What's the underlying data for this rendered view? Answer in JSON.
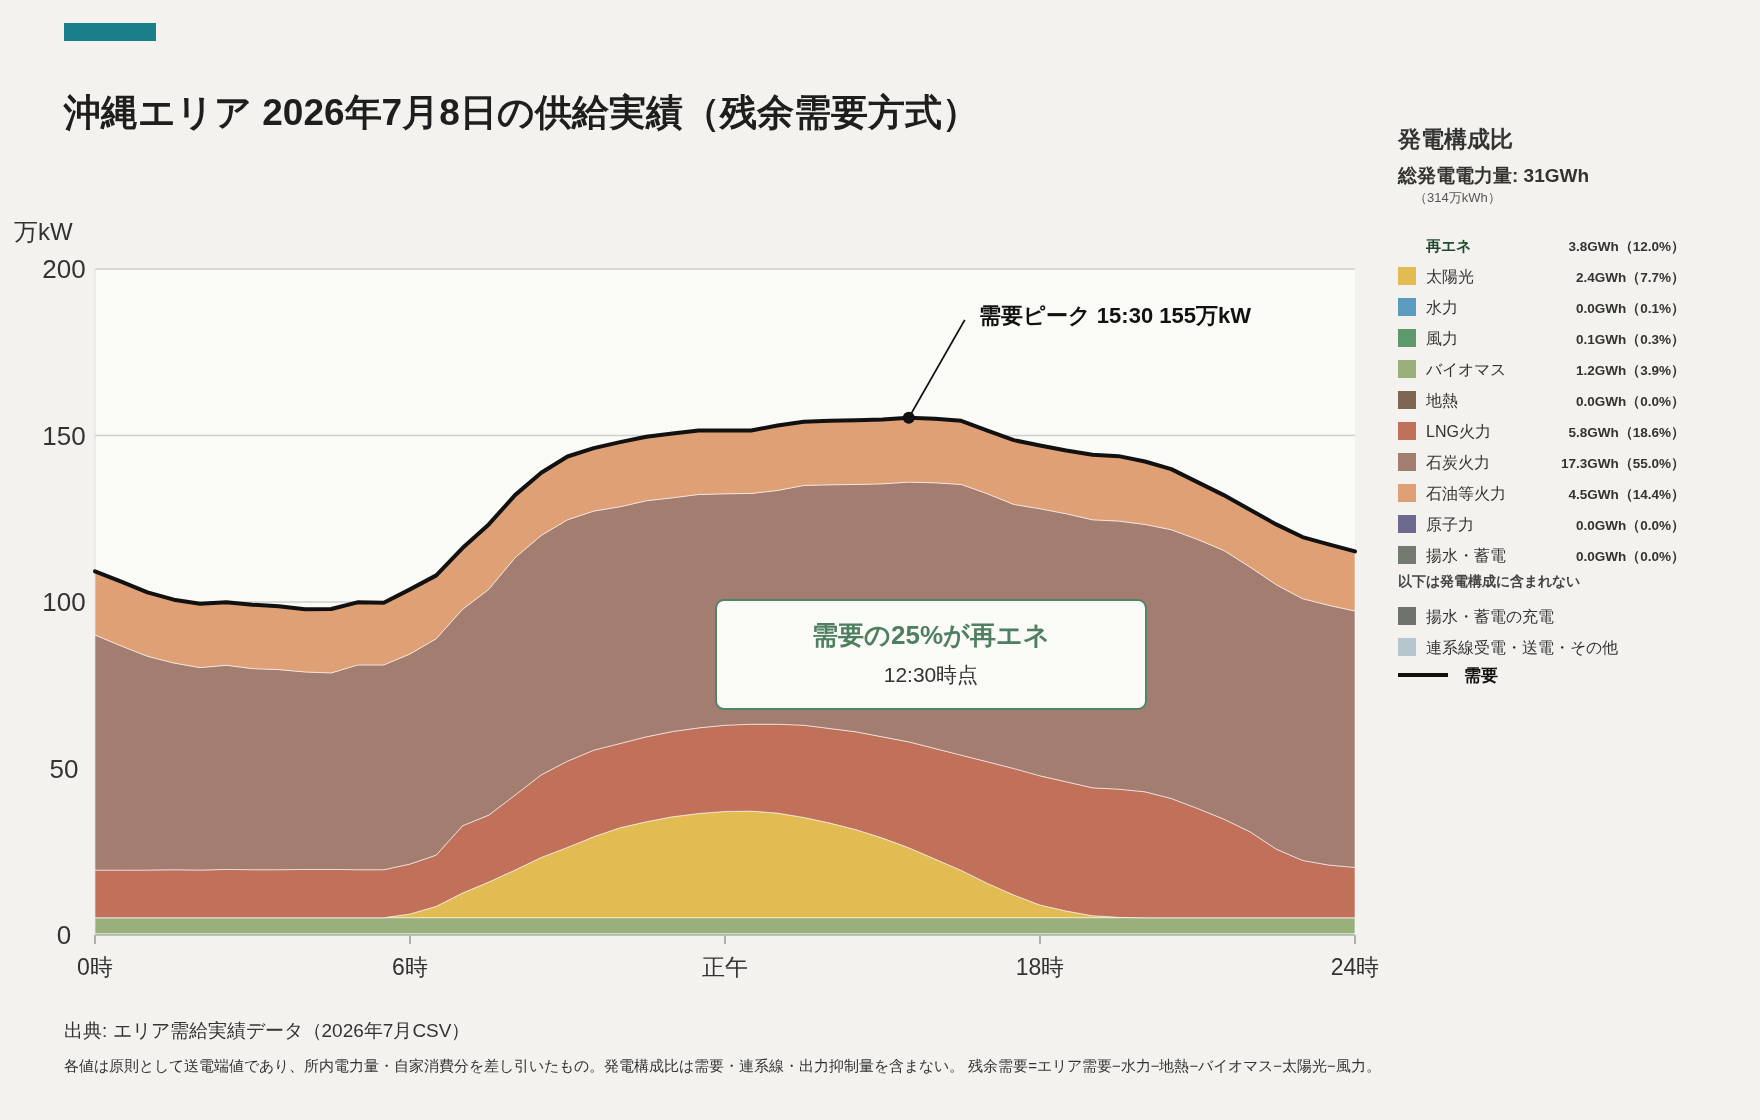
{
  "chart_data": [
    {
      "type": "area",
      "stacked": true,
      "title": "沖縄エリア 2026年7月8日の供給実績（残余需要方式）",
      "ylabel": "万kW",
      "x": [
        0,
        0.5,
        1,
        1.5,
        2,
        2.5,
        3,
        3.5,
        4,
        4.5,
        5,
        5.5,
        6,
        6.5,
        7,
        7.5,
        8,
        8.5,
        9,
        9.5,
        10,
        10.5,
        11,
        11.5,
        12,
        12.5,
        13,
        13.5,
        14,
        14.5,
        15,
        15.5,
        16,
        16.5,
        17,
        17.5,
        18,
        18.5,
        19,
        19.5,
        20,
        20.5,
        21,
        21.5,
        22,
        22.5,
        23,
        23.5,
        24
      ],
      "xlim": [
        0,
        24
      ],
      "ylim": [
        0,
        200
      ],
      "xticks": [
        {
          "value": 0,
          "label": "0時"
        },
        {
          "value": 6,
          "label": "6時"
        },
        {
          "value": 12,
          "label": "正午"
        },
        {
          "value": 18,
          "label": "18時"
        },
        {
          "value": 24,
          "label": "24時"
        }
      ],
      "yticks": [
        0,
        50,
        100,
        150,
        200
      ],
      "grid": "y",
      "series": [
        {
          "color": "#5c9a6e",
          "values": [
            0.4,
            0.4,
            0.4,
            0.4,
            0.4,
            0.4,
            0.4,
            0.4,
            0.4,
            0.4,
            0.4,
            0.4,
            0.4,
            0.4,
            0.4,
            0.4,
            0.4,
            0.4,
            0.4,
            0.4,
            0.4,
            0.4,
            0.4,
            0.4,
            0.4,
            0.4,
            0.4,
            0.4,
            0.4,
            0.4,
            0.4,
            0.4,
            0.4,
            0.4,
            0.4,
            0.4,
            0.4,
            0.4,
            0.4,
            0.4,
            0.4,
            0.4,
            0.4,
            0.4,
            0.4,
            0.4,
            0.4,
            0.4,
            0.4
          ]
        },
        {
          "color": "#9ab07c",
          "values": [
            4.8,
            4.8,
            4.8,
            4.8,
            4.8,
            4.8,
            4.8,
            4.8,
            4.8,
            4.8,
            4.8,
            4.8,
            4.8,
            4.8,
            4.8,
            4.8,
            4.8,
            4.8,
            4.8,
            4.8,
            4.8,
            4.8,
            4.8,
            4.8,
            4.8,
            4.8,
            4.8,
            4.8,
            4.8,
            4.8,
            4.8,
            4.8,
            4.8,
            4.8,
            4.8,
            4.8,
            4.8,
            4.8,
            4.8,
            4.8,
            4.8,
            4.8,
            4.8,
            4.8,
            4.8,
            4.8,
            4.8,
            4.8,
            4.8
          ]
        },
        {
          "color": "#e2bc53",
          "values": [
            0,
            0,
            0,
            0,
            0,
            0,
            0,
            0,
            0,
            0,
            0,
            0,
            1.1,
            3.4,
            7.4,
            10.7,
            14.3,
            18.1,
            21.1,
            24.3,
            27,
            28.8,
            30.3,
            31.3,
            31.9,
            32,
            31.4,
            30.1,
            28.4,
            26.4,
            23.9,
            21,
            17.6,
            14.2,
            10.3,
            6.8,
            3.8,
            2,
            0.6,
            0.1,
            0,
            0,
            0,
            0,
            0,
            0,
            0,
            0,
            0
          ]
        },
        {
          "color": "#c1705a",
          "values": [
            14.3,
            14.3,
            14.3,
            14.4,
            14.3,
            14.5,
            14.4,
            14.4,
            14.5,
            14.5,
            14.4,
            14.4,
            15,
            15.4,
            20.2,
            20.1,
            22.5,
            24.8,
            25.9,
            26,
            25.3,
            25.5,
            25.6,
            25.7,
            25.9,
            26.1,
            26.7,
            27.7,
            28.4,
            29.4,
            30.4,
            31.8,
            33.2,
            34.6,
            36.5,
            38,
            38.8,
            38.8,
            38.4,
            38.5,
            37.8,
            35.8,
            32.8,
            29.6,
            25.8,
            20.6,
            17.2,
            15.8,
            15.1
          ]
        },
        {
          "color": "#a27d70",
          "values": [
            70.6,
            67.3,
            64.2,
            62.1,
            60.8,
            61.3,
            60.4,
            60.1,
            59.3,
            59,
            61.5,
            61.5,
            63.1,
            65,
            65,
            67.8,
            71.3,
            71.9,
            72.5,
            71.8,
            71.1,
            70.9,
            70.2,
            70.1,
            69.5,
            69.3,
            70.2,
            72,
            73.2,
            74.3,
            76,
            78,
            79.8,
            81.3,
            80.5,
            79.3,
            80.2,
            80.5,
            80.5,
            80.5,
            80.3,
            80.7,
            80.8,
            80.7,
            79.5,
            79.4,
            78.6,
            78,
            77
          ]
        },
        {
          "color": "#dfa076",
          "values": [
            19.1,
            19.3,
            19.2,
            19,
            19.2,
            18.9,
            19.2,
            19,
            18.8,
            19.2,
            18.8,
            18.7,
            19.4,
            19,
            18.4,
            19.5,
            18.8,
            18.8,
            19,
            18.9,
            19.4,
            19.2,
            19.3,
            19.2,
            19,
            18.9,
            19.5,
            19.1,
            19.2,
            19.3,
            19.3,
            19.3,
            19.2,
            19.1,
            19,
            19.3,
            19,
            19,
            19.5,
            19.5,
            18.9,
            18.2,
            17.2,
            16.6,
            17.2,
            18.1,
            18.5,
            18.3,
            17.9
          ]
        }
      ],
      "annotations": [
        "需要の25%が再エネ",
        "12:30時点",
        "出典: エリア需給実績データ（2026年7月CSV）",
        "各値は原則として送電端値であり、所内電力量・自家消費分を差し引いたもの。発電構成比は需要・連系線・出力抑制量を含まない。 残余需要=エリア需要−水力−地熱−バイオマス−太陽光−風力。"
      ]
    },
    {
      "type": "line",
      "x": [
        0,
        0.5,
        1,
        1.5,
        2,
        2.5,
        3,
        3.5,
        4,
        4.5,
        5,
        5.5,
        6,
        6.5,
        7,
        7.5,
        8,
        8.5,
        9,
        9.5,
        10,
        10.5,
        11,
        11.5,
        12,
        12.5,
        13,
        13.5,
        14,
        14.5,
        15,
        15.5,
        16,
        16.5,
        17,
        17.5,
        18,
        18.5,
        19,
        19.5,
        20,
        20.5,
        21,
        21.5,
        22,
        22.5,
        23,
        23.5,
        24
      ],
      "xlim": [
        0,
        24
      ],
      "ylim": [
        0,
        200
      ],
      "tick_labels": false,
      "legend": "right",
      "series": [
        {
          "name": "需要",
          "color": "#111111",
          "values": [
            109.2,
            106.1,
            102.9,
            100.7,
            99.5,
            99.9,
            99.2,
            98.7,
            97.8,
            97.9,
            99.9,
            99.8,
            103.8,
            108,
            116.2,
            123.3,
            132.1,
            138.8,
            143.7,
            146.2,
            148,
            149.6,
            150.6,
            151.5,
            151.5,
            151.5,
            153,
            154.1,
            154.4,
            154.6,
            154.8,
            155.3,
            155,
            154.4,
            151.5,
            148.6,
            147,
            145.5,
            144.2,
            143.8,
            142.2,
            139.9,
            136,
            132.1,
            127.7,
            123.3,
            119.5,
            117.3,
            115.2
          ]
        }
      ],
      "annotations": [
        "需要ピーク 15:30 155万kW"
      ]
    },
    {
      "type": "other",
      "title": "発電構成比",
      "subtitle": "総発電電力量: 31GWh",
      "annotations": [
        "（314万kWh）"
      ],
      "categories": [
        "再エネ",
        "太陽光",
        "水力",
        "風力",
        "バイオマス",
        "地熱",
        "LNG火力",
        "石炭火力",
        "石油等火力",
        "原子力",
        "揚水・蓄電",
        "以下は発電構成に含まれない",
        "揚水・蓄電の充電",
        "連系線受電・送電・その他"
      ],
      "colors": [
        null,
        "#e2bc53",
        "#5b9bbf",
        "#5c9a6e",
        "#9ab07c",
        "#7d6653",
        "#c1705a",
        "#a27d70",
        "#dfa076",
        "#6e6a8e",
        "#747a70",
        null,
        "#6e736c",
        "#b5c6cc"
      ],
      "value_labels": [
        "3.8GWh（12.0%）",
        "2.4GWh（7.7%）",
        "0.0GWh（0.1%）",
        "0.1GWh（0.3%）",
        "1.2GWh（3.9%）",
        "0.0GWh（0.0%）",
        "5.8GWh（18.6%）",
        "17.3GWh（55.0%）",
        "4.5GWh（14.4%）",
        "0.0GWh（0.0%）",
        "0.0GWh（0.0%）",
        null,
        null,
        null
      ]
    }
  ]
}
